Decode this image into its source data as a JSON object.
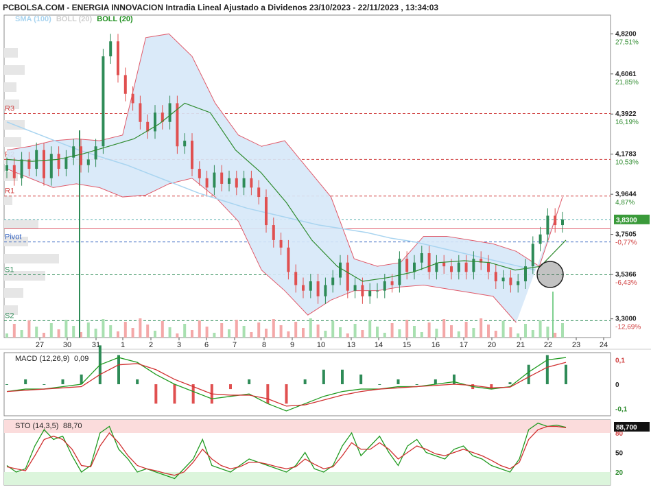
{
  "header": {
    "title": "PCBOLSA.COM - ENERGIA INNOVACION Intradia Lineal Ajustado a Dividenos 23/10/2023 - 22/11/2023 , 13:34:03"
  },
  "legend": {
    "sma": "SMA (100)",
    "boll_gray": "BOLL (20)",
    "boll": "BOLL (20)"
  },
  "colors": {
    "sma": "#a8d4f0",
    "boll_band": "#d6e8f8",
    "boll_edge": "#e05a6a",
    "boll_mid": "#2e8b2e",
    "up": "#2e8b57",
    "down": "#e05050",
    "vol_up": "#a8e0b0",
    "vol_down": "#f4a8a8",
    "price_tag": "#3a9a3a"
  },
  "chart_data": [
    {
      "type": "candlestick",
      "title": "ENERGIA INNOVACION",
      "x_ticks": [
        "27",
        "30",
        "31",
        "1",
        "2",
        "3",
        "6",
        "7",
        "8",
        "9",
        "10",
        "13",
        "14",
        "15",
        "16",
        "17",
        "20",
        "21",
        "22",
        "23",
        "24"
      ],
      "y_ticks": [
        {
          "value": 4.82,
          "label": "4,8200",
          "pct": "27,51%"
        },
        {
          "value": 4.6061,
          "label": "4,6061",
          "pct": "21,85%"
        },
        {
          "value": 4.3922,
          "label": "4,3922",
          "pct": "16,19%"
        },
        {
          "value": 4.1783,
          "label": "4,1783",
          "pct": "10,53%"
        },
        {
          "value": 3.9644,
          "label": "3,9644",
          "pct": "4,87%"
        },
        {
          "value": 3.7505,
          "label": "3,7505",
          "pct": "-0,77%"
        },
        {
          "value": 3.5366,
          "label": "3,5366",
          "pct": "-6,43%"
        },
        {
          "value": 3.3,
          "label": "3,3000",
          "pct": "-12,69%"
        }
      ],
      "ylim": [
        3.2,
        4.92
      ],
      "last_price": 3.83,
      "last_price_label": "3,8300",
      "reference_price": 3.78,
      "pivots": [
        {
          "name": "R3",
          "value": 4.395
        },
        {
          "name": "R2",
          "value": 4.15
        },
        {
          "name": "R1",
          "value": 3.955
        },
        {
          "name": "Pivot",
          "value": 3.71
        },
        {
          "name": "S1",
          "value": 3.535
        },
        {
          "name": "S2",
          "value": 3.29
        }
      ],
      "close_path": [
        4.12,
        4.05,
        4.15,
        4.1,
        4.2,
        4.05,
        4.18,
        4.1,
        4.16,
        4.22,
        4.12,
        4.15,
        4.22,
        4.7,
        4.78,
        4.6,
        4.5,
        4.45,
        4.35,
        4.3,
        4.4,
        4.35,
        4.45,
        4.22,
        4.25,
        4.1,
        4.05,
        4.0,
        4.08,
        4.02,
        4.05,
        4.0,
        4.05,
        4.0,
        3.95,
        3.8,
        3.72,
        3.68,
        3.55,
        3.48,
        3.45,
        3.5,
        3.42,
        3.48,
        3.52,
        3.6,
        3.45,
        3.48,
        3.42,
        3.45,
        3.45,
        3.5,
        3.48,
        3.62,
        3.55,
        3.6,
        3.65,
        3.55,
        3.6,
        3.58,
        3.55,
        3.6,
        3.55,
        3.62,
        3.6,
        3.55,
        3.5,
        3.52,
        3.48,
        3.5,
        3.58,
        3.7,
        3.75,
        3.85,
        3.8,
        3.83
      ],
      "sma_path": [
        4.35,
        4.3,
        4.25,
        4.2,
        4.16,
        4.12,
        4.07,
        4.02,
        3.97,
        3.93,
        3.89,
        3.86,
        3.83,
        3.8,
        3.78,
        3.76,
        3.73,
        3.71,
        3.68,
        3.65,
        3.62,
        3.59,
        3.56
      ],
      "boll_upper": [
        4.2,
        4.22,
        4.25,
        4.26,
        4.25,
        4.28,
        4.8,
        4.82,
        4.7,
        4.45,
        4.28,
        4.22,
        4.25,
        4.1,
        3.95,
        3.62,
        3.58,
        3.6,
        3.74,
        3.74,
        3.72,
        3.7,
        3.66,
        3.58,
        3.95
      ],
      "boll_mid": [
        4.15,
        4.14,
        4.15,
        4.18,
        4.22,
        4.26,
        4.34,
        4.45,
        4.4,
        4.2,
        4.08,
        3.92,
        3.72,
        3.58,
        3.5,
        3.52,
        3.55,
        3.6,
        3.61,
        3.6,
        3.56,
        3.58,
        3.72
      ],
      "boll_lower": [
        4.1,
        4.05,
        4.0,
        4.02,
        4.0,
        3.95,
        3.96,
        4.02,
        4.05,
        3.95,
        3.82,
        3.56,
        3.45,
        3.32,
        3.4,
        3.45,
        3.45,
        3.47,
        3.48,
        3.46,
        3.44,
        3.42,
        3.28
      ]
    },
    {
      "type": "histogram",
      "title": "MACD",
      "label": "MACD (12,26,9)",
      "value_label": "0,09",
      "y_ticks": [
        {
          "value": 0.1,
          "label": "0,1"
        },
        {
          "value": 0,
          "label": "0"
        },
        {
          "value": -0.1,
          "label": "-0,1"
        }
      ],
      "ylim": [
        -0.13,
        0.13
      ],
      "macd": [
        -0.03,
        -0.02,
        -0.02,
        -0.01,
        0.0,
        0.08,
        0.11,
        0.09,
        0.04,
        0.0,
        -0.03,
        -0.06,
        -0.05,
        -0.04,
        -0.08,
        -0.11,
        -0.08,
        -0.05,
        -0.03,
        -0.02,
        -0.02,
        -0.01,
        -0.01,
        0.0,
        0.01,
        -0.01,
        -0.02,
        -0.01,
        0.05,
        0.1,
        0.11
      ],
      "signal": [
        -0.03,
        -0.025,
        -0.02,
        -0.015,
        -0.01,
        0.04,
        0.08,
        0.085,
        0.06,
        0.02,
        -0.01,
        -0.04,
        -0.045,
        -0.045,
        -0.06,
        -0.09,
        -0.085,
        -0.065,
        -0.045,
        -0.03,
        -0.02,
        -0.015,
        -0.01,
        -0.005,
        0.0,
        -0.005,
        -0.015,
        -0.012,
        0.03,
        0.07,
        0.09
      ]
    },
    {
      "type": "line",
      "title": "STO",
      "label": "STO (14,3,5)",
      "value_label": "88,70",
      "last_tag": "88,700",
      "y_ticks": [
        {
          "value": 80,
          "label": "80"
        },
        {
          "value": 50,
          "label": "50"
        },
        {
          "value": 20,
          "label": "20"
        }
      ],
      "ylim": [
        0,
        100
      ],
      "k": [
        30,
        20,
        25,
        60,
        85,
        70,
        75,
        45,
        20,
        30,
        80,
        90,
        55,
        40,
        20,
        25,
        20,
        15,
        10,
        25,
        40,
        70,
        30,
        25,
        20,
        30,
        40,
        35,
        30,
        25,
        20,
        30,
        50,
        25,
        20,
        30,
        60,
        80,
        45,
        60,
        75,
        50,
        30,
        60,
        70,
        50,
        45,
        40,
        55,
        60,
        45,
        40,
        30,
        25,
        20,
        40,
        85,
        95,
        90,
        92,
        88.7
      ],
      "d": [
        28,
        25,
        22,
        45,
        70,
        75,
        70,
        55,
        30,
        28,
        60,
        80,
        65,
        45,
        30,
        25,
        22,
        18,
        15,
        20,
        35,
        55,
        40,
        30,
        25,
        28,
        35,
        35,
        32,
        28,
        25,
        28,
        40,
        32,
        25,
        28,
        45,
        65,
        55,
        55,
        65,
        55,
        40,
        50,
        60,
        55,
        48,
        45,
        50,
        55,
        50,
        45,
        38,
        30,
        25,
        35,
        70,
        85,
        90,
        90,
        88
      ]
    }
  ]
}
